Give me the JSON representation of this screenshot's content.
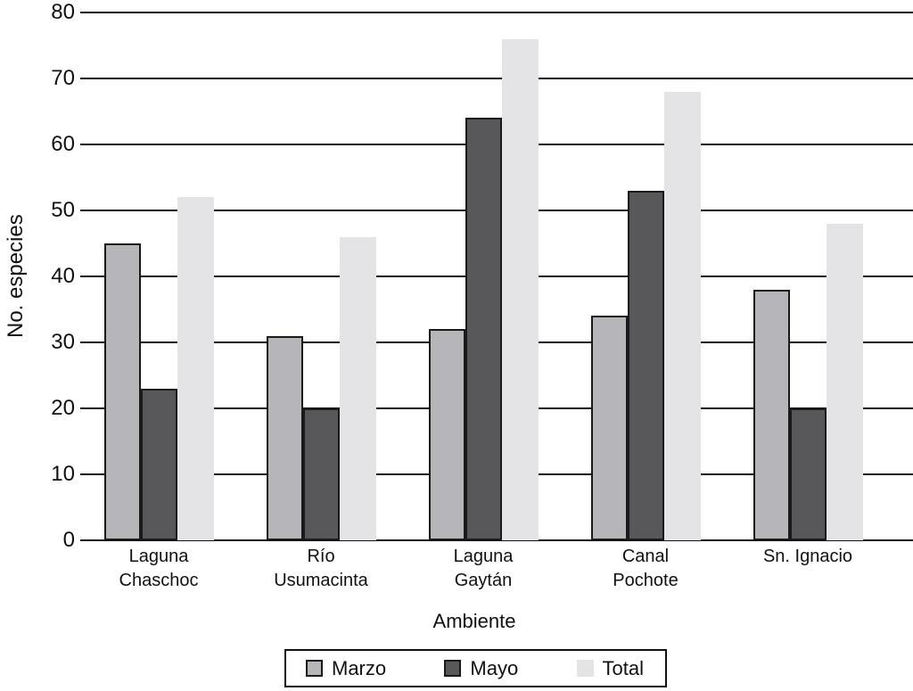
{
  "chart_data": {
    "type": "bar",
    "categories": [
      "Laguna Chaschoc",
      "Río Usumacinta",
      "Laguna Gaytán",
      "Canal Pochote",
      "Sn. Ignacio"
    ],
    "category_label_lines": [
      [
        "Laguna",
        "Chaschoc"
      ],
      [
        "Río",
        "Usumacinta"
      ],
      [
        "Laguna",
        "Gaytán"
      ],
      [
        "Canal",
        "Pochote"
      ],
      [
        "Sn. Ignacio"
      ]
    ],
    "series": [
      {
        "name": "Marzo",
        "values": [
          45,
          31,
          32,
          34,
          38
        ],
        "color": "#b6b6ba",
        "border": true
      },
      {
        "name": "Mayo",
        "values": [
          23,
          20,
          64,
          53,
          20
        ],
        "color": "#58585a",
        "border": true
      },
      {
        "name": "Total",
        "values": [
          52,
          46,
          76,
          68,
          48
        ],
        "color": "#e4e4e6",
        "border": false
      }
    ],
    "xlabel": "Ambiente",
    "ylabel": "No. especies",
    "ylim": [
      0,
      80
    ],
    "yticks": [
      0,
      10,
      20,
      30,
      40,
      50,
      60,
      70,
      80
    ],
    "grid": true,
    "legend_position": "bottom"
  },
  "colors": {
    "grid": "#111111",
    "bar_border": "#1a1a1a",
    "background": "#ffffff",
    "text": "#111111"
  }
}
